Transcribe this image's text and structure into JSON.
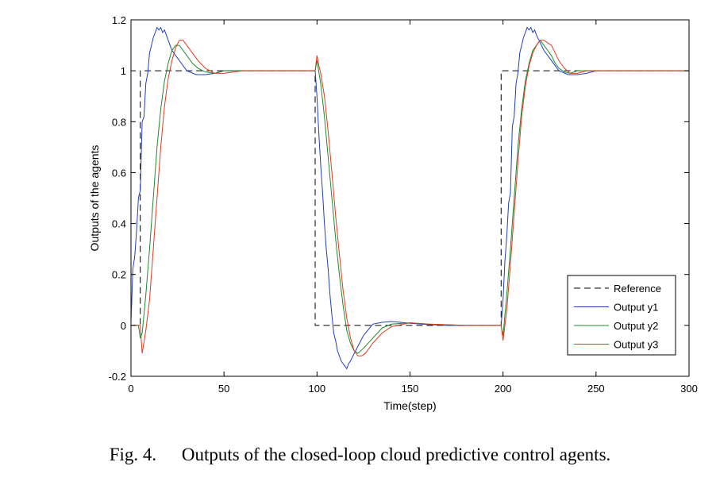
{
  "caption": {
    "figure_number": "Fig. 4.",
    "text": "Outputs of the closed-loop cloud predictive control agents."
  },
  "chart_data": {
    "type": "line",
    "title": "",
    "xlabel": "Time(step)",
    "ylabel": "Outputs of the agents",
    "xlim": [
      0,
      300
    ],
    "ylim": [
      -0.2,
      1.2
    ],
    "xticks": [
      0,
      50,
      100,
      150,
      200,
      250,
      300
    ],
    "xtick_labels": [
      "0",
      "50",
      "100",
      "150",
      "200",
      "250",
      "300"
    ],
    "yticks": [
      -0.2,
      0,
      0.2,
      0.4,
      0.6,
      0.8,
      1,
      1.2
    ],
    "ytick_labels": [
      "-0.2",
      "0",
      "0.2",
      "0.4",
      "0.6",
      "0.8",
      "1",
      "1.2"
    ],
    "grid": false,
    "legend_position": "lower-right",
    "series": [
      {
        "name": "Reference",
        "color": "#000000",
        "dash": "dashed",
        "x": [
          0,
          5,
          5,
          99,
          99,
          199,
          199,
          300
        ],
        "y": [
          0,
          0,
          1,
          1,
          0,
          0,
          1,
          1
        ]
      },
      {
        "name": "Output y1",
        "color": "#1f3fbf",
        "dash": "solid",
        "x": [
          0,
          1,
          2,
          3,
          4,
          5,
          6,
          7,
          8,
          9,
          10,
          11,
          12,
          13,
          14,
          15,
          16,
          17,
          18,
          20,
          22,
          25,
          30,
          35,
          40,
          45,
          50,
          60,
          70,
          80,
          90,
          99,
          100,
          101,
          102,
          103,
          104,
          105,
          106,
          107,
          108,
          109,
          110,
          111,
          112,
          113,
          114,
          115,
          116,
          117,
          118,
          120,
          125,
          130,
          135,
          140,
          145,
          150,
          160,
          170,
          180,
          190,
          199,
          200,
          201,
          202,
          203,
          204,
          205,
          206,
          207,
          208,
          209,
          210,
          211,
          212,
          213,
          214,
          215,
          216,
          217,
          218,
          220,
          222,
          225,
          230,
          235,
          240,
          245,
          250,
          260,
          270,
          280,
          290,
          300
        ],
        "y": [
          0,
          0.22,
          0.27,
          0.37,
          0.5,
          0.53,
          0.8,
          0.82,
          0.95,
          0.99,
          1.07,
          1.1,
          1.13,
          1.15,
          1.17,
          1.16,
          1.17,
          1.15,
          1.16,
          1.12,
          1.08,
          1.05,
          1.0,
          0.985,
          0.985,
          0.99,
          1.0,
          1.0,
          1.0,
          1.0,
          1.0,
          1.0,
          0.9,
          0.75,
          0.63,
          0.52,
          0.4,
          0.3,
          0.22,
          0.12,
          0.04,
          -0.03,
          -0.06,
          -0.1,
          -0.12,
          -0.14,
          -0.15,
          -0.16,
          -0.17,
          -0.15,
          -0.14,
          -0.11,
          -0.04,
          0.005,
          0.012,
          0.015,
          0.012,
          0.008,
          0.003,
          0.0,
          0.0,
          0.0,
          0.0,
          0.1,
          0.25,
          0.35,
          0.48,
          0.52,
          0.78,
          0.82,
          0.95,
          0.99,
          1.07,
          1.1,
          1.13,
          1.15,
          1.17,
          1.16,
          1.17,
          1.15,
          1.16,
          1.14,
          1.11,
          1.08,
          1.05,
          1.0,
          0.985,
          0.985,
          0.99,
          1.0,
          1.0,
          1.0,
          1.0,
          1.0,
          1.0
        ]
      },
      {
        "name": "Output y2",
        "color": "#1e8a2e",
        "dash": "solid",
        "x": [
          0,
          4,
          5,
          6,
          8,
          10,
          12,
          14,
          16,
          18,
          20,
          22,
          24,
          26,
          28,
          30,
          33,
          36,
          40,
          45,
          50,
          60,
          80,
          99,
          100,
          102,
          104,
          106,
          108,
          110,
          112,
          114,
          116,
          118,
          120,
          122,
          125,
          130,
          135,
          140,
          150,
          160,
          180,
          199,
          200,
          202,
          204,
          206,
          208,
          210,
          212,
          214,
          216,
          218,
          220,
          222,
          224,
          226,
          228,
          230,
          233,
          236,
          240,
          245,
          250,
          260,
          280,
          300
        ],
        "y": [
          0,
          0,
          -0.05,
          -0.03,
          0.12,
          0.3,
          0.5,
          0.7,
          0.85,
          0.96,
          1.03,
          1.08,
          1.1,
          1.1,
          1.08,
          1.06,
          1.03,
          1.01,
          0.995,
          0.99,
          1.0,
          1.0,
          1.0,
          1.0,
          1.04,
          0.95,
          0.82,
          0.66,
          0.5,
          0.34,
          0.2,
          0.08,
          -0.02,
          -0.07,
          -0.1,
          -0.11,
          -0.09,
          -0.05,
          -0.01,
          0.005,
          0.01,
          0.005,
          0.0,
          0.0,
          -0.04,
          0.12,
          0.3,
          0.5,
          0.7,
          0.85,
          0.96,
          1.03,
          1.08,
          1.1,
          1.12,
          1.1,
          1.08,
          1.06,
          1.03,
          1.01,
          0.995,
          0.99,
          1.0,
          1.0,
          1.0,
          1.0,
          1.0,
          1.0
        ]
      },
      {
        "name": "Output y3",
        "color": "#e03a1e",
        "dash": "solid",
        "x": [
          0,
          5,
          6,
          8,
          10,
          12,
          14,
          16,
          18,
          20,
          22,
          24,
          26,
          28,
          30,
          33,
          36,
          40,
          45,
          50,
          60,
          80,
          99,
          100,
          101,
          102,
          104,
          106,
          108,
          110,
          112,
          114,
          116,
          118,
          120,
          122,
          124,
          126,
          130,
          135,
          140,
          150,
          160,
          180,
          199,
          200,
          201,
          202,
          204,
          206,
          208,
          210,
          212,
          214,
          216,
          218,
          220,
          222,
          224,
          226,
          228,
          230,
          233,
          236,
          240,
          245,
          250,
          260,
          280,
          300
        ],
        "y": [
          0,
          0,
          -0.11,
          -0.02,
          0.1,
          0.3,
          0.5,
          0.7,
          0.86,
          0.97,
          1.04,
          1.09,
          1.12,
          1.12,
          1.1,
          1.07,
          1.04,
          1.01,
          0.99,
          0.99,
          1.0,
          1.0,
          1.0,
          1.06,
          1.02,
          0.99,
          0.9,
          0.76,
          0.6,
          0.43,
          0.28,
          0.14,
          0.03,
          -0.05,
          -0.1,
          -0.12,
          -0.12,
          -0.11,
          -0.07,
          -0.03,
          -0.005,
          0.01,
          0.005,
          0.0,
          0.0,
          -0.06,
          0.0,
          0.06,
          0.24,
          0.44,
          0.64,
          0.82,
          0.94,
          1.02,
          1.07,
          1.1,
          1.12,
          1.12,
          1.11,
          1.1,
          1.07,
          1.04,
          1.01,
          0.99,
          0.99,
          1.0,
          1.0,
          1.0,
          1.0,
          1.0
        ]
      }
    ]
  }
}
